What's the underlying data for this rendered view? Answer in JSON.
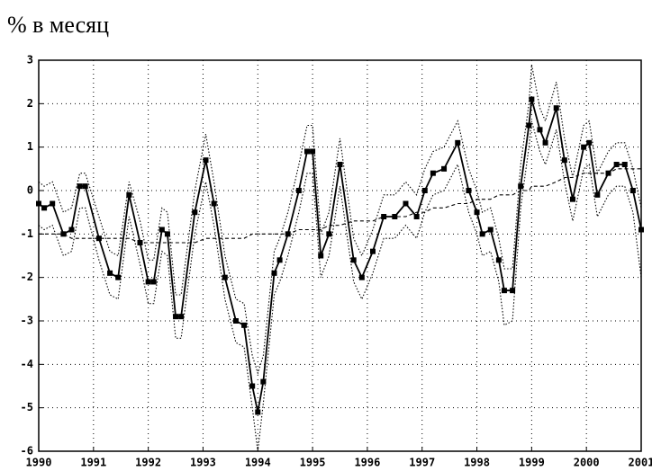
{
  "chart_data": {
    "type": "line",
    "title": "% в месяц",
    "x": [
      1990.0,
      1990.1,
      1990.25,
      1990.45,
      1990.6,
      1990.75,
      1990.85,
      1991.1,
      1991.3,
      1991.45,
      1991.65,
      1991.85,
      1992.0,
      1992.1,
      1992.25,
      1992.35,
      1992.5,
      1992.6,
      1992.85,
      1993.05,
      1993.2,
      1993.4,
      1993.6,
      1993.75,
      1993.9,
      1994.0,
      1994.1,
      1994.3,
      1994.4,
      1994.55,
      1994.75,
      1994.9,
      1995.0,
      1995.15,
      1995.3,
      1995.5,
      1995.75,
      1995.9,
      1996.1,
      1996.3,
      1996.5,
      1996.7,
      1996.9,
      1997.05,
      1997.2,
      1997.4,
      1997.65,
      1997.85,
      1998.0,
      1998.1,
      1998.25,
      1998.4,
      1998.5,
      1998.65,
      1998.8,
      1998.95,
      1999.0,
      1999.15,
      1999.25,
      1999.45,
      1999.6,
      1999.75,
      1999.95,
      2000.05,
      2000.2,
      2000.4,
      2000.55,
      2000.7,
      2000.85,
      2001.0
    ],
    "series": [
      {
        "color": "#000000",
        "line_style": "solid",
        "markers": true,
        "values": [
          -0.3,
          -0.4,
          -0.3,
          -1.0,
          -0.9,
          0.1,
          0.1,
          -1.1,
          -1.9,
          -2.0,
          -0.1,
          -1.2,
          -2.1,
          -2.1,
          -0.9,
          -1.0,
          -2.9,
          -2.9,
          -0.5,
          0.7,
          -0.3,
          -2.0,
          -3.0,
          -3.1,
          -4.5,
          -5.1,
          -4.4,
          -1.9,
          -1.6,
          -1.0,
          0.0,
          0.9,
          0.9,
          -1.5,
          -1.0,
          0.6,
          -1.6,
          -2.0,
          -1.4,
          -0.6,
          -0.6,
          -0.3,
          -0.6,
          0.0,
          0.4,
          0.5,
          1.1,
          0.0,
          -0.5,
          -1.0,
          -0.9,
          -1.6,
          -2.3,
          -2.3,
          0.1,
          1.5,
          2.1,
          1.4,
          1.1,
          1.9,
          0.7,
          -0.2,
          1.0,
          1.1,
          -0.1,
          0.4,
          0.6,
          0.6,
          0.0,
          -0.9
        ]
      },
      {
        "color": "#000000",
        "line_style": "dotted",
        "markers": false,
        "values": [
          0.2,
          0.1,
          0.2,
          -0.5,
          -0.4,
          0.4,
          0.4,
          -0.6,
          -1.4,
          -1.5,
          0.2,
          -0.7,
          -1.6,
          -1.6,
          -0.4,
          -0.5,
          -2.4,
          -2.4,
          0.0,
          1.3,
          0.2,
          -1.5,
          -2.5,
          -2.6,
          -3.8,
          -4.2,
          -3.8,
          -1.4,
          -1.1,
          -0.5,
          0.6,
          1.5,
          1.5,
          -1.0,
          -0.5,
          1.2,
          -1.1,
          -1.5,
          -0.9,
          -0.1,
          -0.1,
          0.2,
          -0.1,
          0.5,
          0.9,
          1.0,
          1.6,
          0.5,
          0.0,
          -0.5,
          -0.4,
          -1.1,
          -1.8,
          -1.8,
          0.6,
          2.0,
          2.9,
          1.9,
          1.6,
          2.5,
          1.2,
          0.3,
          1.5,
          1.6,
          0.4,
          0.9,
          1.1,
          1.1,
          0.5,
          -0.4
        ]
      },
      {
        "color": "#000000",
        "line_style": "dotted",
        "markers": false,
        "values": [
          -0.8,
          -0.9,
          -0.8,
          -1.5,
          -1.4,
          -0.4,
          -0.4,
          -1.6,
          -2.4,
          -2.5,
          -0.6,
          -1.7,
          -2.6,
          -2.6,
          -1.4,
          -1.5,
          -3.4,
          -3.4,
          -1.0,
          0.2,
          -0.8,
          -2.5,
          -3.5,
          -3.6,
          -5.0,
          -6.0,
          -4.9,
          -2.4,
          -2.1,
          -1.5,
          -0.5,
          0.4,
          0.4,
          -2.0,
          -1.5,
          0.1,
          -2.1,
          -2.5,
          -1.9,
          -1.1,
          -1.1,
          -0.8,
          -1.1,
          -0.5,
          -0.1,
          0.0,
          0.6,
          -0.5,
          -1.0,
          -1.5,
          -1.4,
          -2.1,
          -3.1,
          -3.0,
          -0.4,
          1.0,
          1.6,
          0.9,
          0.6,
          1.4,
          0.2,
          -0.7,
          0.5,
          0.6,
          -0.6,
          -0.1,
          0.1,
          0.1,
          -0.5,
          -2.0
        ]
      },
      {
        "color": "#000000",
        "line_style": "dashed",
        "markers": false,
        "values": [
          -1.0,
          -1.0,
          -1.0,
          -1.0,
          -1.1,
          -1.1,
          -1.1,
          -1.1,
          -1.1,
          -1.1,
          -1.1,
          -1.2,
          -1.2,
          -1.2,
          -1.2,
          -1.2,
          -1.2,
          -1.2,
          -1.2,
          -1.1,
          -1.1,
          -1.1,
          -1.1,
          -1.1,
          -1.0,
          -1.0,
          -1.0,
          -1.0,
          -1.0,
          -1.0,
          -0.9,
          -0.9,
          -0.9,
          -0.9,
          -0.8,
          -0.8,
          -0.7,
          -0.7,
          -0.7,
          -0.6,
          -0.6,
          -0.6,
          -0.5,
          -0.5,
          -0.4,
          -0.4,
          -0.3,
          -0.3,
          -0.2,
          -0.2,
          -0.2,
          -0.1,
          -0.1,
          -0.1,
          0.0,
          0.0,
          0.1,
          0.1,
          0.1,
          0.2,
          0.3,
          0.3,
          0.4,
          0.4,
          0.4,
          0.4,
          0.5,
          0.5,
          0.5,
          0.5
        ]
      }
    ],
    "xlim": [
      1990,
      2001
    ],
    "xticks": [
      1990,
      1991,
      1992,
      1993,
      1994,
      1995,
      1996,
      1997,
      1998,
      1999,
      2000,
      2001
    ],
    "ylim": [
      -6,
      3
    ],
    "yticks": [
      -6,
      -5,
      -4,
      -3,
      -2,
      -1,
      0,
      1,
      2,
      3
    ],
    "grid": true
  }
}
